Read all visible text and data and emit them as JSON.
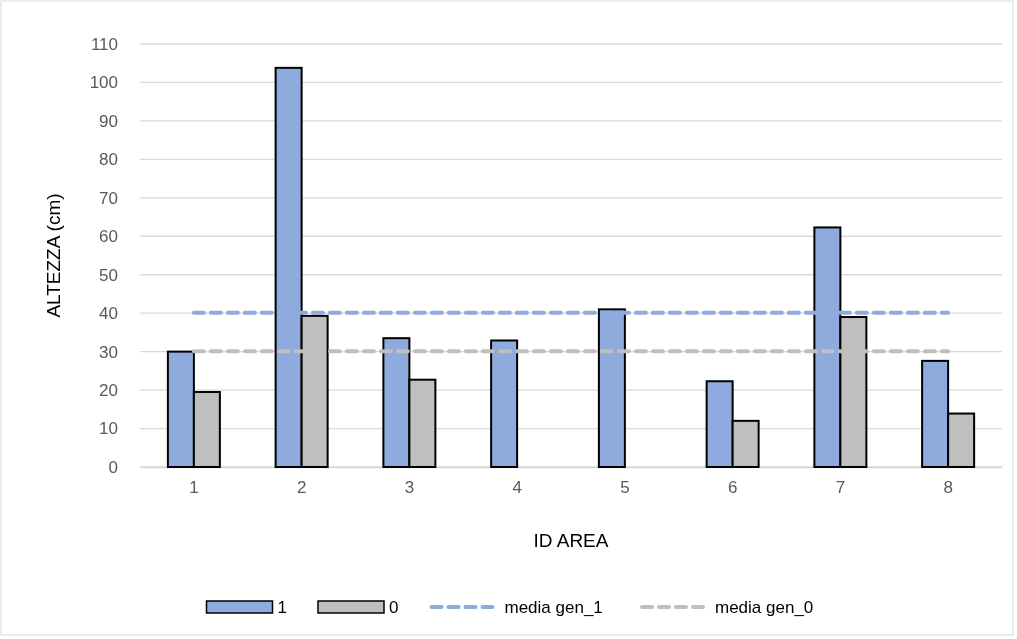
{
  "chart_data": {
    "type": "bar",
    "xlabel": "ID AREA",
    "ylabel": "ALTEZZA (cm)",
    "categories": [
      "1",
      "2",
      "3",
      "4",
      "5",
      "6",
      "7",
      "8"
    ],
    "series": [
      {
        "name": "1",
        "color": "#8faadc",
        "values": [
          30.0,
          103.8,
          33.5,
          32.9,
          41.0,
          22.3,
          62.3,
          27.6
        ]
      },
      {
        "name": "0",
        "color": "#bfbfbf",
        "values": [
          19.5,
          39.3,
          22.7,
          null,
          null,
          12.0,
          39.0,
          13.9
        ]
      },
      {
        "name": "media gen_1",
        "type": "line",
        "line_style": "dashed",
        "color": "#8faadc",
        "values": [
          40.1,
          40.1,
          40.1,
          40.1,
          40.1,
          40.1,
          40.1,
          40.1
        ]
      },
      {
        "name": "media gen_0",
        "type": "line",
        "line_style": "dashed",
        "color": "#bfbfbf",
        "values": [
          30.1,
          30.1,
          30.1,
          30.1,
          30.1,
          30.1,
          30.1,
          30.1
        ]
      }
    ],
    "ylim": [
      0,
      110
    ],
    "yticks": [
      0,
      10,
      20,
      30,
      40,
      50,
      60,
      70,
      80,
      90,
      100,
      110
    ],
    "grid": "y",
    "legend": "bottom"
  }
}
